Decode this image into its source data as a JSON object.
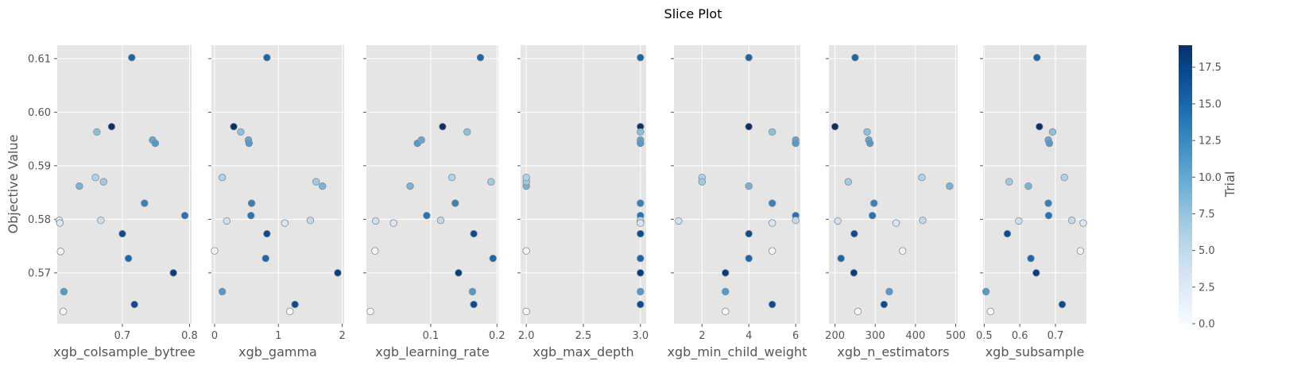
{
  "chart_data": {
    "type": "scatter",
    "title": "Slice Plot",
    "ylabel": "Objective Value",
    "ylim": [
      0.5605,
      0.6125
    ],
    "y_ticks": [
      0.57,
      0.58,
      0.59,
      0.6,
      0.61
    ],
    "y_tick_labels": [
      "0.57",
      "0.58",
      "0.59",
      "0.60",
      "0.61"
    ],
    "grid": true,
    "colormap": "Blues",
    "colorbar": {
      "label": "Trial",
      "range": [
        0,
        19
      ],
      "ticks": [
        0,
        2.5,
        5,
        7.5,
        10,
        12.5,
        15,
        17.5
      ],
      "tick_labels": [
        "0.0",
        "2.5",
        "5.0",
        "7.5",
        "10.0",
        "12.5",
        "15.0",
        "17.5"
      ]
    },
    "subplots": [
      {
        "xlabel": "xgb_colsample_bytree",
        "xlim": [
          0.603,
          0.803
        ],
        "x_ticks": [
          0.7,
          0.8
        ],
        "x_tick_labels": [
          "0.7",
          "0.8"
        ],
        "points": [
          {
            "x": 0.612,
            "y": 0.5628,
            "trial": 0
          },
          {
            "x": 0.608,
            "y": 0.574,
            "trial": 1
          },
          {
            "x": 0.606,
            "y": 0.5798,
            "trial": 2
          },
          {
            "x": 0.607,
            "y": 0.5793,
            "trial": 3
          },
          {
            "x": 0.668,
            "y": 0.5798,
            "trial": 4
          },
          {
            "x": 0.66,
            "y": 0.5878,
            "trial": 6
          },
          {
            "x": 0.672,
            "y": 0.587,
            "trial": 7
          },
          {
            "x": 0.662,
            "y": 0.5963,
            "trial": 8
          },
          {
            "x": 0.636,
            "y": 0.5862,
            "trial": 9
          },
          {
            "x": 0.745,
            "y": 0.5948,
            "trial": 10
          },
          {
            "x": 0.749,
            "y": 0.5942,
            "trial": 11
          },
          {
            "x": 0.613,
            "y": 0.5665,
            "trial": 11
          },
          {
            "x": 0.733,
            "y": 0.583,
            "trial": 13
          },
          {
            "x": 0.793,
            "y": 0.5807,
            "trial": 14
          },
          {
            "x": 0.709,
            "y": 0.5727,
            "trial": 15
          },
          {
            "x": 0.714,
            "y": 0.6102,
            "trial": 15
          },
          {
            "x": 0.7,
            "y": 0.5773,
            "trial": 17
          },
          {
            "x": 0.718,
            "y": 0.5641,
            "trial": 17
          },
          {
            "x": 0.776,
            "y": 0.57,
            "trial": 18
          },
          {
            "x": 0.684,
            "y": 0.5973,
            "trial": 19
          }
        ]
      },
      {
        "xlabel": "xgb_gamma",
        "xlim": [
          -0.05,
          2.03
        ],
        "x_ticks": [
          0,
          1,
          2
        ],
        "x_tick_labels": [
          "0",
          "1",
          "2"
        ],
        "points": [
          {
            "x": 0.0,
            "y": 0.5741,
            "trial": 1
          },
          {
            "x": 0.12,
            "y": 0.5878,
            "trial": 6
          },
          {
            "x": 0.19,
            "y": 0.5797,
            "trial": 4
          },
          {
            "x": 0.12,
            "y": 0.5665,
            "trial": 11
          },
          {
            "x": 0.3,
            "y": 0.5973,
            "trial": 19
          },
          {
            "x": 0.41,
            "y": 0.5963,
            "trial": 8
          },
          {
            "x": 0.53,
            "y": 0.5948,
            "trial": 10
          },
          {
            "x": 0.54,
            "y": 0.5942,
            "trial": 11
          },
          {
            "x": 0.58,
            "y": 0.583,
            "trial": 13
          },
          {
            "x": 0.57,
            "y": 0.5807,
            "trial": 14
          },
          {
            "x": 0.82,
            "y": 0.5773,
            "trial": 17
          },
          {
            "x": 0.8,
            "y": 0.5727,
            "trial": 15
          },
          {
            "x": 0.82,
            "y": 0.6102,
            "trial": 15
          },
          {
            "x": 1.1,
            "y": 0.5793,
            "trial": 3
          },
          {
            "x": 1.18,
            "y": 0.5628,
            "trial": 0
          },
          {
            "x": 1.26,
            "y": 0.5641,
            "trial": 17
          },
          {
            "x": 1.5,
            "y": 0.5798,
            "trial": 5
          },
          {
            "x": 1.59,
            "y": 0.587,
            "trial": 7
          },
          {
            "x": 1.69,
            "y": 0.5862,
            "trial": 9
          },
          {
            "x": 1.93,
            "y": 0.57,
            "trial": 18
          }
        ]
      },
      {
        "xlabel": "xgb_learning_rate",
        "xlim": [
          0.003,
          0.202
        ],
        "x_ticks": [
          0.1,
          0.2
        ],
        "x_tick_labels": [
          "0.1",
          "0.2"
        ],
        "points": [
          {
            "x": 0.009,
            "y": 0.5628,
            "trial": 0
          },
          {
            "x": 0.016,
            "y": 0.5741,
            "trial": 1
          },
          {
            "x": 0.017,
            "y": 0.5797,
            "trial": 4
          },
          {
            "x": 0.044,
            "y": 0.5793,
            "trial": 3
          },
          {
            "x": 0.069,
            "y": 0.5862,
            "trial": 9
          },
          {
            "x": 0.08,
            "y": 0.5942,
            "trial": 11
          },
          {
            "x": 0.086,
            "y": 0.5948,
            "trial": 10
          },
          {
            "x": 0.094,
            "y": 0.5807,
            "trial": 14
          },
          {
            "x": 0.115,
            "y": 0.5798,
            "trial": 5
          },
          {
            "x": 0.118,
            "y": 0.5973,
            "trial": 19
          },
          {
            "x": 0.132,
            "y": 0.5878,
            "trial": 6
          },
          {
            "x": 0.137,
            "y": 0.583,
            "trial": 13
          },
          {
            "x": 0.142,
            "y": 0.57,
            "trial": 18
          },
          {
            "x": 0.155,
            "y": 0.5963,
            "trial": 8
          },
          {
            "x": 0.163,
            "y": 0.5665,
            "trial": 11
          },
          {
            "x": 0.165,
            "y": 0.5773,
            "trial": 17
          },
          {
            "x": 0.165,
            "y": 0.5641,
            "trial": 17
          },
          {
            "x": 0.175,
            "y": 0.6102,
            "trial": 15
          },
          {
            "x": 0.191,
            "y": 0.587,
            "trial": 7
          },
          {
            "x": 0.194,
            "y": 0.5727,
            "trial": 15
          }
        ]
      },
      {
        "xlabel": "xgb_max_depth",
        "xlim": [
          1.95,
          3.05
        ],
        "x_ticks": [
          2,
          2.5,
          3
        ],
        "x_tick_labels": [
          "2.0",
          "2.5",
          "3.0"
        ],
        "points": [
          {
            "x": 2,
            "y": 0.5628,
            "trial": 0
          },
          {
            "x": 2,
            "y": 0.5741,
            "trial": 1
          },
          {
            "x": 2,
            "y": 0.5862,
            "trial": 9
          },
          {
            "x": 2,
            "y": 0.587,
            "trial": 7
          },
          {
            "x": 2,
            "y": 0.5878,
            "trial": 6
          },
          {
            "x": 3,
            "y": 0.6102,
            "trial": 15
          },
          {
            "x": 3,
            "y": 0.5973,
            "trial": 19
          },
          {
            "x": 3,
            "y": 0.5963,
            "trial": 8
          },
          {
            "x": 3,
            "y": 0.5948,
            "trial": 10
          },
          {
            "x": 3,
            "y": 0.5942,
            "trial": 11
          },
          {
            "x": 3,
            "y": 0.583,
            "trial": 13
          },
          {
            "x": 3,
            "y": 0.5807,
            "trial": 14
          },
          {
            "x": 3,
            "y": 0.5798,
            "trial": 5
          },
          {
            "x": 3,
            "y": 0.5793,
            "trial": 3
          },
          {
            "x": 3,
            "y": 0.5773,
            "trial": 17
          },
          {
            "x": 3,
            "y": 0.5727,
            "trial": 15
          },
          {
            "x": 3,
            "y": 0.57,
            "trial": 18
          },
          {
            "x": 3,
            "y": 0.5665,
            "trial": 11
          },
          {
            "x": 3,
            "y": 0.5641,
            "trial": 17
          }
        ]
      },
      {
        "xlabel": "xgb_min_child_weight",
        "xlim": [
          0.8,
          6.2
        ],
        "x_ticks": [
          2,
          4,
          6
        ],
        "x_tick_labels": [
          "2",
          "4",
          "6"
        ],
        "points": [
          {
            "x": 1,
            "y": 0.5797,
            "trial": 4
          },
          {
            "x": 2,
            "y": 0.5878,
            "trial": 6
          },
          {
            "x": 2,
            "y": 0.587,
            "trial": 7
          },
          {
            "x": 3,
            "y": 0.57,
            "trial": 18
          },
          {
            "x": 3,
            "y": 0.5665,
            "trial": 11
          },
          {
            "x": 3,
            "y": 0.5628,
            "trial": 0
          },
          {
            "x": 4,
            "y": 0.6102,
            "trial": 15
          },
          {
            "x": 4,
            "y": 0.5973,
            "trial": 19
          },
          {
            "x": 4,
            "y": 0.5862,
            "trial": 9
          },
          {
            "x": 4,
            "y": 0.5773,
            "trial": 17
          },
          {
            "x": 4,
            "y": 0.5727,
            "trial": 15
          },
          {
            "x": 5,
            "y": 0.5963,
            "trial": 8
          },
          {
            "x": 5,
            "y": 0.583,
            "trial": 13
          },
          {
            "x": 5,
            "y": 0.5793,
            "trial": 3
          },
          {
            "x": 5,
            "y": 0.5741,
            "trial": 1
          },
          {
            "x": 5,
            "y": 0.5641,
            "trial": 17
          },
          {
            "x": 6,
            "y": 0.5948,
            "trial": 10
          },
          {
            "x": 6,
            "y": 0.5942,
            "trial": 11
          },
          {
            "x": 6,
            "y": 0.5807,
            "trial": 14
          },
          {
            "x": 6,
            "y": 0.5798,
            "trial": 5
          }
        ]
      },
      {
        "xlabel": "xgb_n_estimators",
        "xlim": [
          185,
          505
        ],
        "x_ticks": [
          200,
          300,
          400,
          500
        ],
        "x_tick_labels": [
          "200",
          "300",
          "400",
          "500"
        ],
        "points": [
          {
            "x": 200,
            "y": 0.5973,
            "trial": 19
          },
          {
            "x": 207,
            "y": 0.5797,
            "trial": 4
          },
          {
            "x": 215,
            "y": 0.5727,
            "trial": 15
          },
          {
            "x": 233,
            "y": 0.587,
            "trial": 7
          },
          {
            "x": 250,
            "y": 0.6102,
            "trial": 15
          },
          {
            "x": 248,
            "y": 0.5773,
            "trial": 17
          },
          {
            "x": 247,
            "y": 0.57,
            "trial": 18
          },
          {
            "x": 257,
            "y": 0.5628,
            "trial": 0
          },
          {
            "x": 280,
            "y": 0.5963,
            "trial": 8
          },
          {
            "x": 284,
            "y": 0.5948,
            "trial": 10
          },
          {
            "x": 287,
            "y": 0.5942,
            "trial": 11
          },
          {
            "x": 297,
            "y": 0.583,
            "trial": 13
          },
          {
            "x": 293,
            "y": 0.5807,
            "trial": 14
          },
          {
            "x": 322,
            "y": 0.5641,
            "trial": 17
          },
          {
            "x": 335,
            "y": 0.5665,
            "trial": 11
          },
          {
            "x": 352,
            "y": 0.5793,
            "trial": 3
          },
          {
            "x": 368,
            "y": 0.5741,
            "trial": 1
          },
          {
            "x": 416,
            "y": 0.5878,
            "trial": 6
          },
          {
            "x": 418,
            "y": 0.5798,
            "trial": 5
          },
          {
            "x": 485,
            "y": 0.5862,
            "trial": 9
          }
        ]
      },
      {
        "xlabel": "xgb_subsample",
        "xlim": [
          0.497,
          0.787
        ],
        "x_ticks": [
          0.5,
          0.6,
          0.7
        ],
        "x_tick_labels": [
          "0.5",
          "0.6",
          "0.7"
        ],
        "points": [
          {
            "x": 0.505,
            "y": 0.5665,
            "trial": 11
          },
          {
            "x": 0.518,
            "y": 0.5628,
            "trial": 0
          },
          {
            "x": 0.565,
            "y": 0.5773,
            "trial": 17
          },
          {
            "x": 0.57,
            "y": 0.587,
            "trial": 7
          },
          {
            "x": 0.597,
            "y": 0.5797,
            "trial": 4
          },
          {
            "x": 0.624,
            "y": 0.5862,
            "trial": 9
          },
          {
            "x": 0.631,
            "y": 0.5727,
            "trial": 15
          },
          {
            "x": 0.646,
            "y": 0.57,
            "trial": 18
          },
          {
            "x": 0.648,
            "y": 0.6102,
            "trial": 15
          },
          {
            "x": 0.655,
            "y": 0.5973,
            "trial": 19
          },
          {
            "x": 0.68,
            "y": 0.5948,
            "trial": 10
          },
          {
            "x": 0.683,
            "y": 0.5942,
            "trial": 11
          },
          {
            "x": 0.68,
            "y": 0.583,
            "trial": 13
          },
          {
            "x": 0.681,
            "y": 0.5807,
            "trial": 14
          },
          {
            "x": 0.692,
            "y": 0.5963,
            "trial": 8
          },
          {
            "x": 0.719,
            "y": 0.5641,
            "trial": 17
          },
          {
            "x": 0.725,
            "y": 0.5878,
            "trial": 6
          },
          {
            "x": 0.746,
            "y": 0.5798,
            "trial": 5
          },
          {
            "x": 0.77,
            "y": 0.5741,
            "trial": 1
          },
          {
            "x": 0.778,
            "y": 0.5793,
            "trial": 3
          }
        ]
      }
    ]
  }
}
